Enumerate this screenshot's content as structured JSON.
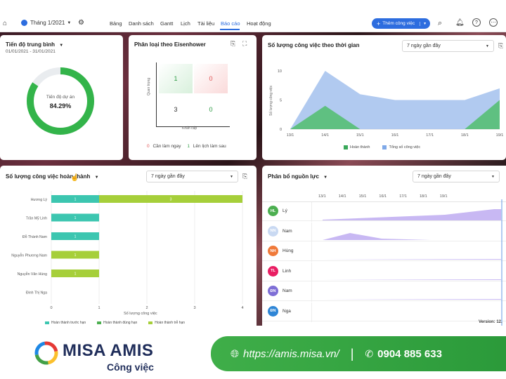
{
  "topbar": {
    "period": "Tháng 1/2021",
    "tabs": [
      "Bảng",
      "Danh sách",
      "Gantt",
      "Lịch",
      "Tài liệu",
      "Báo cáo",
      "Hoạt động"
    ],
    "active_tab": "Báo cáo",
    "add_button": "Thêm công việc"
  },
  "progress_card": {
    "title": "Tiến độ trung bình",
    "range": "01/01/2021 - 31/01/2021",
    "label": "Tiến độ dự án",
    "value": "84.29%"
  },
  "eisenhower": {
    "title": "Phân loại theo Eisenhower",
    "y_axis": "Quan trọng",
    "x_axis": "Khẩn cấp",
    "cells": [
      "1",
      "0",
      "3",
      "0"
    ],
    "legend": [
      "Cần làm ngay",
      "Lên lịch làm sau"
    ],
    "legend_markers": [
      "0",
      "1"
    ]
  },
  "timeline": {
    "title": "Số lượng công việc theo thời gian",
    "filter": "7 ngày gần đây",
    "y_axis": "Số lượng công việc",
    "legend": [
      "Hoàn thành",
      "Tổng số công việc"
    ]
  },
  "completed": {
    "title": "Số lượng công việc hoàn thành",
    "filter": "7 ngày gần đây",
    "x_axis": "Số lượng công việc",
    "legend": [
      "Hoàn thành trước hạn",
      "Hoàn thành đúng hạn",
      "Hoàn thành trễ hạn"
    ]
  },
  "resources": {
    "title": "Phân bổ nguồn lực",
    "filter": "7 ngày gần đây",
    "dates": [
      "13/1",
      "14/1",
      "15/1",
      "16/1",
      "17/1",
      "18/1",
      "19/1"
    ],
    "people": [
      {
        "initials": "HL",
        "name": "Lý",
        "color": "#4caf50"
      },
      {
        "initials": "NN",
        "name": "Nam",
        "color": "#c9d9f2"
      },
      {
        "initials": "NH",
        "name": "Hùng",
        "color": "#f07a3a"
      },
      {
        "initials": "TL",
        "name": "Linh",
        "color": "#e91e63"
      },
      {
        "initials": "ĐN",
        "name": "Nam",
        "color": "#7e6fd6"
      },
      {
        "initials": "ĐN",
        "name": "Nga",
        "color": "#2f86d6"
      }
    ],
    "version": "Version: 12."
  },
  "footer": {
    "brand": "MISA AMIS",
    "product": "Công việc",
    "url": "https://amis.misa.vn/",
    "phone": "0904 885 633"
  },
  "chart_data": [
    {
      "type": "area",
      "title": "Số lượng công việc theo thời gian",
      "x": [
        "13/1",
        "14/1",
        "15/1",
        "16/1",
        "17/1",
        "18/1",
        "19/1"
      ],
      "series": [
        {
          "name": "Tổng số công việc",
          "values": [
            0,
            10,
            6,
            5,
            5,
            5,
            7
          ]
        },
        {
          "name": "Hoàn thành",
          "values": [
            0,
            4,
            0,
            0,
            0,
            0,
            5
          ]
        }
      ],
      "ylim": [
        0,
        10
      ],
      "yticks": [
        0,
        5,
        10
      ],
      "colors": {
        "total": "#a8c4ee",
        "done": "#5bbf7a"
      }
    },
    {
      "type": "bar",
      "title": "Số lượng công việc hoàn thành",
      "categories": [
        "Hương Lý",
        "Trần Mỹ Linh",
        "Đỗ Thành Nam",
        "Nguyễn Phương Nam",
        "Nguyễn Văn Hùng",
        "Đinh Thị Nga"
      ],
      "series": [
        {
          "name": "Hoàn thành trước hạn",
          "values": [
            1,
            1,
            1,
            0,
            0,
            0
          ]
        },
        {
          "name": "Hoàn thành đúng hạn",
          "values": [
            0,
            0,
            0,
            0,
            0,
            0
          ]
        },
        {
          "name": "Hoàn thành trễ hạn",
          "values": [
            3,
            0,
            0,
            1,
            1,
            0
          ]
        }
      ],
      "xlim": [
        0,
        4
      ],
      "xticks": [
        0,
        1,
        2,
        3,
        4
      ],
      "colors": [
        "#3cc6b0",
        "#4caf50",
        "#a6cf3a"
      ]
    }
  ]
}
